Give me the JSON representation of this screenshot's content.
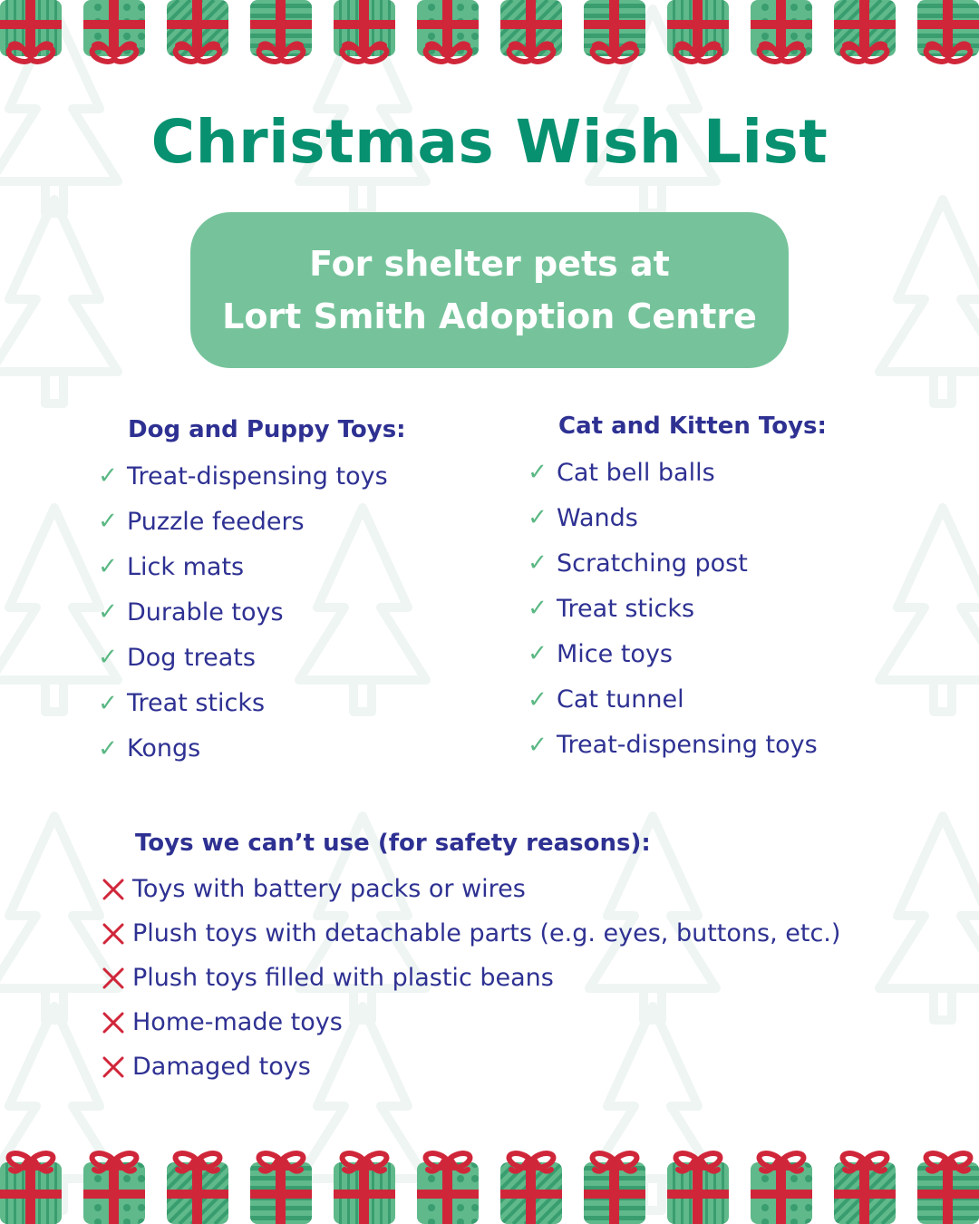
{
  "title": "Christmas Wish List",
  "banner": {
    "line1": "For shelter pets at",
    "line2": "Lort Smith Adoption Centre"
  },
  "colors": {
    "title": "#079170",
    "banner": "#76c39b",
    "text": "#2e3192",
    "check": "#5bb884",
    "cross": "#d0263a",
    "gift_green": "#5fb98a",
    "ribbon": "#d0263a"
  },
  "dog": {
    "heading": "Dog and Puppy Toys:",
    "items": [
      "Treat-dispensing toys",
      "Puzzle feeders",
      "Lick mats",
      "Durable toys",
      "Dog treats",
      "Treat sticks",
      "Kongs"
    ]
  },
  "cat": {
    "heading": "Cat and Kitten Toys:",
    "items": [
      "Cat bell balls",
      "Wands",
      "Scratching post",
      "Treat sticks",
      "Mice toys",
      "Cat tunnel",
      "Treat-dispensing toys"
    ]
  },
  "cannot_use": {
    "heading": "Toys we can’t use (for safety reasons):",
    "items": [
      "Toys with battery packs or wires",
      "Plush toys with detachable parts (e.g. eyes, buttons, etc.)",
      "Plush toys filled with plastic beans",
      "Home-made toys",
      "Damaged toys"
    ]
  },
  "icons": {
    "allowed": "check-icon",
    "forbidden": "cross-icon",
    "decoration": "gift-icon",
    "background": "christmas-tree-icon"
  }
}
